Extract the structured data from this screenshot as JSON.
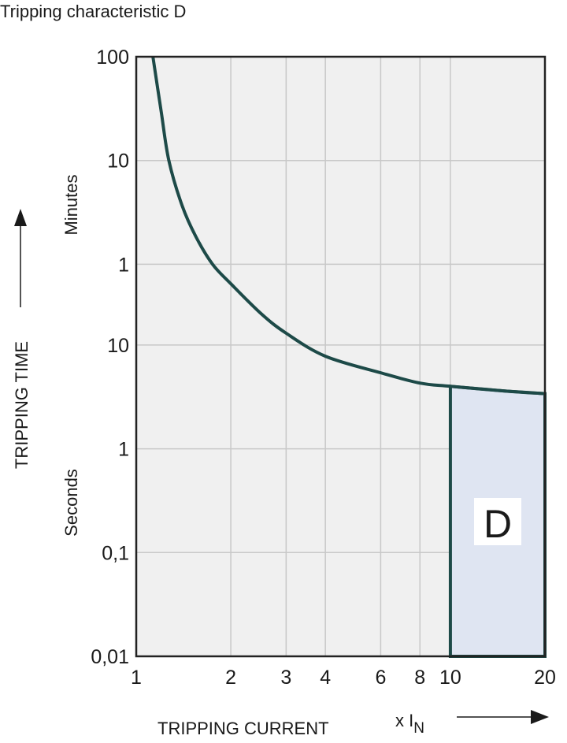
{
  "title": "Tripping characteristic D",
  "chart_data": {
    "type": "line",
    "title": "Tripping characteristic D",
    "xlabel": "TRIPPING CURRENT",
    "xunit": "x I",
    "xunit_sub": "N",
    "ylabel": "TRIPPING TIME",
    "y_section_labels": [
      "Minutes",
      "Seconds"
    ],
    "xscale": "log",
    "yscale": "log",
    "xlim": [
      1,
      20
    ],
    "ylim_seconds": [
      0.01,
      6000
    ],
    "grid": true,
    "x_ticks": [
      {
        "value": 1,
        "label": "1"
      },
      {
        "value": 2,
        "label": "2"
      },
      {
        "value": 3,
        "label": "3"
      },
      {
        "value": 4,
        "label": "4"
      },
      {
        "value": 6,
        "label": "6"
      },
      {
        "value": 8,
        "label": "8"
      },
      {
        "value": 10,
        "label": "10"
      },
      {
        "value": 20,
        "label": "20"
      }
    ],
    "y_ticks": [
      {
        "seconds": 6000,
        "label": "100"
      },
      {
        "seconds": 600,
        "label": "10"
      },
      {
        "seconds": 60,
        "label": "1"
      },
      {
        "seconds": 10,
        "label": "10"
      },
      {
        "seconds": 1,
        "label": "1"
      },
      {
        "seconds": 0.1,
        "label": "0,1"
      },
      {
        "seconds": 0.01,
        "label": "0,01"
      }
    ],
    "curve": {
      "x": [
        1.13,
        1.2,
        1.27,
        1.4,
        1.55,
        1.75,
        2,
        2.5,
        3,
        4,
        6,
        8,
        10,
        15,
        20
      ],
      "y_seconds": [
        6000,
        1800,
        600,
        220,
        110,
        60,
        39,
        20,
        13,
        7.8,
        5.4,
        4.3,
        4.0,
        3.6,
        3.4
      ]
    },
    "region": {
      "label": "D",
      "x": [
        10,
        20
      ],
      "y_bottom_seconds": 0.01
    },
    "colors": {
      "curve": "#1d4a48",
      "plot_bg": "#f0f0f0",
      "region_fill": "#dfe5f2",
      "grid": "#c8c8c8"
    }
  }
}
